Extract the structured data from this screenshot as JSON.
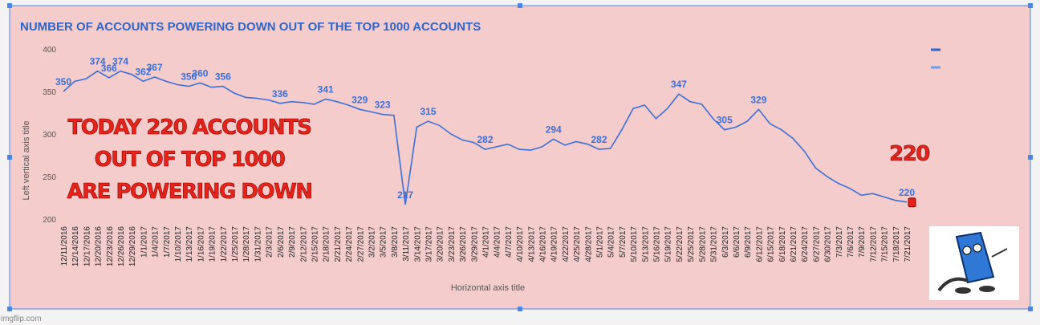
{
  "chart_data": {
    "type": "line",
    "title": "NUMBER OF ACCOUNTS POWERING DOWN OUT OF THE TOP 1000 ACCOUNTS",
    "y_axis_title": "Left vertical axis title",
    "x_axis_title": "Horizontal axis title",
    "categories": [
      "12/11/2016",
      "12/14/2016",
      "12/17/2016",
      "12/20/2016",
      "12/23/2016",
      "12/26/2016",
      "12/29/2016",
      "1/1/2017",
      "1/4/2017",
      "1/7/2017",
      "1/10/2017",
      "1/13/2017",
      "1/16/2017",
      "1/19/2017",
      "1/22/2017",
      "1/25/2017",
      "1/28/2017",
      "1/31/2017",
      "2/3/2017",
      "2/6/2017",
      "2/9/2017",
      "2/12/2017",
      "2/15/2017",
      "2/18/2017",
      "2/21/2017",
      "2/24/2017",
      "2/27/2017",
      "3/2/2017",
      "3/5/2017",
      "3/8/2017",
      "3/11/2017",
      "3/14/2017",
      "3/17/2017",
      "3/20/2017",
      "3/23/2017",
      "3/26/2017",
      "3/29/2017",
      "4/1/2017",
      "4/4/2017",
      "4/7/2017",
      "4/10/2017",
      "4/13/2017",
      "4/16/2017",
      "4/19/2017",
      "4/22/2017",
      "4/25/2017",
      "4/28/2017",
      "5/1/2017",
      "5/4/2017",
      "5/7/2017",
      "5/10/2017",
      "5/13/2017",
      "5/16/2017",
      "5/19/2017",
      "5/22/2017",
      "5/25/2017",
      "5/28/2017",
      "5/31/2017",
      "6/3/2017",
      "6/6/2017",
      "6/9/2017",
      "6/12/2017",
      "6/15/2017",
      "6/18/2017",
      "6/21/2017",
      "6/24/2017",
      "6/27/2017",
      "6/30/2017",
      "7/3/2017",
      "7/6/2017",
      "7/9/2017",
      "7/12/2017",
      "7/15/2017",
      "7/18/2017",
      "7/21/2017"
    ],
    "series": [
      {
        "color": "#3c6fd6",
        "values": [
          350,
          362,
          365,
          374,
          366,
          374,
          370,
          362,
          367,
          362,
          358,
          356,
          360,
          355,
          356,
          348,
          343,
          342,
          340,
          336,
          338,
          337,
          335,
          341,
          338,
          334,
          329,
          326,
          323,
          322,
          217,
          308,
          315,
          310,
          300,
          293,
          290,
          282,
          285,
          288,
          282,
          281,
          285,
          294,
          287,
          291,
          288,
          282,
          283,
          305,
          330,
          334,
          318,
          330,
          347,
          338,
          335,
          318,
          305,
          308,
          315,
          329,
          312,
          305,
          295,
          280,
          260,
          250,
          242,
          236,
          228,
          230,
          226,
          222,
          220
        ],
        "value_labels": [
          "350",
          null,
          null,
          "374",
          "366",
          "374",
          null,
          "362",
          "367",
          null,
          null,
          "356",
          "360",
          null,
          "356",
          null,
          null,
          null,
          null,
          "336",
          null,
          null,
          null,
          "341",
          null,
          null,
          "329",
          null,
          "323",
          null,
          "217",
          null,
          "315",
          null,
          null,
          null,
          null,
          "282",
          null,
          null,
          null,
          null,
          null,
          "294",
          null,
          null,
          null,
          "282",
          null,
          null,
          null,
          null,
          null,
          null,
          "347",
          null,
          null,
          null,
          "305",
          null,
          null,
          "329",
          null,
          null,
          null,
          null,
          null,
          null,
          null,
          null,
          null,
          null,
          null,
          null,
          "220"
        ]
      }
    ],
    "ylim": [
      200,
      400
    ],
    "yticks": [
      200,
      250,
      300,
      350,
      400
    ],
    "grid": false
  },
  "annotations": {
    "headline": [
      "TODAY  220  ACCOUNTS",
      "OUT OF TOP 1000",
      "ARE POWERING DOWN"
    ],
    "end_label": "220",
    "watermark": "imgflip.com"
  }
}
